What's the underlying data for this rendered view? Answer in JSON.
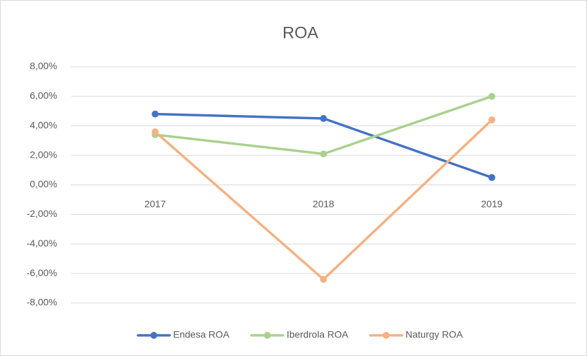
{
  "chart_data": {
    "type": "line",
    "title": "ROA",
    "categories": [
      "2017",
      "2018",
      "2019"
    ],
    "series": [
      {
        "name": "Endesa ROA",
        "color": "#4472c4",
        "values": [
          4.8,
          4.5,
          0.5
        ]
      },
      {
        "name": "Iberdrola ROA",
        "color": "#a9d18e",
        "values": [
          3.4,
          2.1,
          6.0
        ]
      },
      {
        "name": "Naturgy ROA",
        "color": "#f4b183",
        "values": [
          3.6,
          -6.4,
          4.4
        ]
      }
    ],
    "ylim": [
      -8,
      8
    ],
    "yticks": [
      {
        "value": -8,
        "label": "-8,00%"
      },
      {
        "value": -6,
        "label": "-6,00%"
      },
      {
        "value": -4,
        "label": "-4,00%"
      },
      {
        "value": -2,
        "label": "-2,00%"
      },
      {
        "value": 0,
        "label": "0,00%"
      },
      {
        "value": 2,
        "label": "2,00%"
      },
      {
        "value": 4,
        "label": "4,00%"
      },
      {
        "value": 6,
        "label": "6,00%"
      },
      {
        "value": 8,
        "label": "8,00%"
      }
    ],
    "grid": true,
    "legend": "bottom"
  }
}
